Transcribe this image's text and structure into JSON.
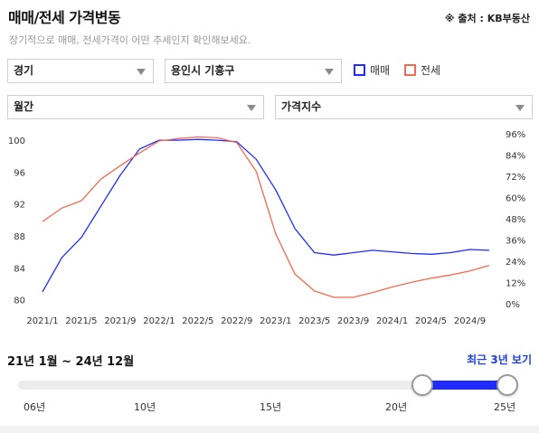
{
  "header": {
    "title": "매매/전세 가격변동",
    "source": "※ 출처 : KB부동산",
    "subtitle": "장기적으로 매매, 전세가격이 어떤 추세인지 확인해보세요."
  },
  "filters": {
    "region": "경기",
    "district": "용인시 기흥구",
    "period": "월간",
    "metric": "가격지수"
  },
  "legend": {
    "sale": {
      "label": "매매",
      "color": "#1f2bff"
    },
    "jeonse": {
      "label": "전세",
      "color": "#f26b4f"
    }
  },
  "chart_data": {
    "type": "line",
    "x": [
      "2021/1",
      "2021/3",
      "2021/5",
      "2021/7",
      "2021/9",
      "2021/11",
      "2022/1",
      "2022/3",
      "2022/5",
      "2022/7",
      "2022/9",
      "2022/11",
      "2023/1",
      "2023/3",
      "2023/5",
      "2023/7",
      "2023/9",
      "2023/11",
      "2024/1",
      "2024/3",
      "2024/5",
      "2024/7",
      "2024/9",
      "2024/12"
    ],
    "x_tick_labels": [
      "2021/1",
      "2021/5",
      "2021/9",
      "2022/1",
      "2022/5",
      "2022/9",
      "2023/1",
      "2023/5",
      "2023/9",
      "2024/1",
      "2024/5",
      "2024/9"
    ],
    "y_left_ticks": [
      "80",
      "84",
      "88",
      "92",
      "96",
      "100"
    ],
    "y_right_ticks": [
      "0%",
      "12%",
      "24%",
      "36%",
      "48%",
      "60%",
      "72%",
      "84%",
      "96%"
    ],
    "ylim_left": [
      79.5,
      100.8
    ],
    "ylim_right": [
      0,
      96
    ],
    "grid": false,
    "series": [
      {
        "name": "매매",
        "axis": "left",
        "color": "#1f2bff",
        "values": [
          81.0,
          85.3,
          87.8,
          91.7,
          95.6,
          98.9,
          100.0,
          100.0,
          100.1,
          100.0,
          99.8,
          97.6,
          93.8,
          88.9,
          85.9,
          85.6,
          85.9,
          86.2,
          86.0,
          85.8,
          85.7,
          85.9,
          86.3,
          86.2
        ]
      },
      {
        "name": "전세",
        "axis": "left",
        "color": "#f26b4f",
        "values": [
          89.8,
          91.5,
          92.4,
          95.1,
          96.8,
          98.4,
          99.9,
          100.2,
          100.4,
          100.3,
          99.7,
          96.1,
          88.3,
          83.2,
          81.1,
          80.3,
          80.3,
          80.9,
          81.6,
          82.2,
          82.7,
          83.1,
          83.6,
          84.3
        ]
      }
    ]
  },
  "range": {
    "label": "21년 1월 ~ 24년 12월",
    "recent_button": "최근 3년 보기",
    "slider_labels": [
      "06년",
      "10년",
      "15년",
      "20년",
      "25년"
    ]
  }
}
